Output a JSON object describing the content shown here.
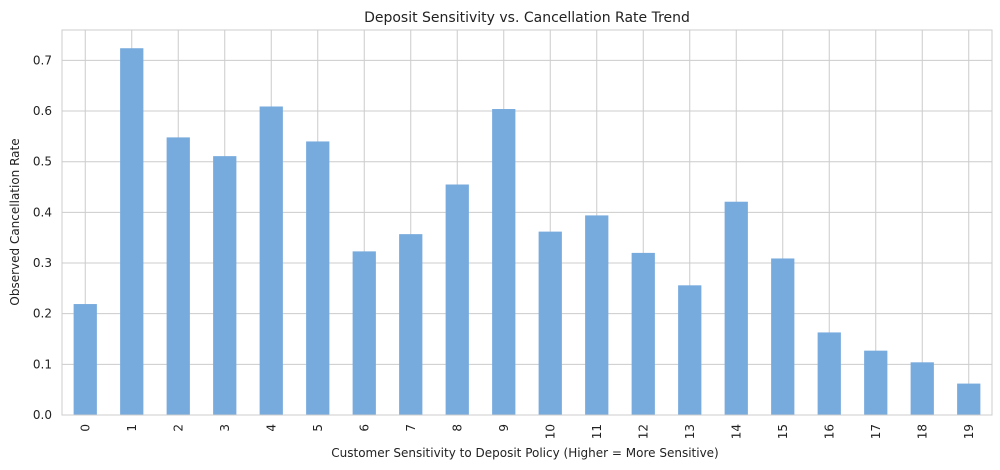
{
  "chart_data": {
    "type": "bar",
    "title": "Deposit Sensitivity vs. Cancellation Rate Trend",
    "xlabel": "Customer Sensitivity to Deposit Policy (Higher = More Sensitive)",
    "ylabel": "Observed Cancellation Rate",
    "categories": [
      "0",
      "1",
      "2",
      "3",
      "4",
      "5",
      "6",
      "7",
      "8",
      "9",
      "10",
      "11",
      "12",
      "13",
      "14",
      "15",
      "16",
      "17",
      "18",
      "19"
    ],
    "values": [
      0.219,
      0.724,
      0.548,
      0.511,
      0.609,
      0.54,
      0.323,
      0.357,
      0.455,
      0.604,
      0.362,
      0.394,
      0.32,
      0.256,
      0.421,
      0.309,
      0.163,
      0.127,
      0.104,
      0.062
    ],
    "ylim": [
      0,
      0.76
    ],
    "yticks": [
      "0.0",
      "0.1",
      "0.2",
      "0.3",
      "0.4",
      "0.5",
      "0.6",
      "0.7"
    ],
    "grid": true,
    "bar_color": "#77aadd"
  }
}
